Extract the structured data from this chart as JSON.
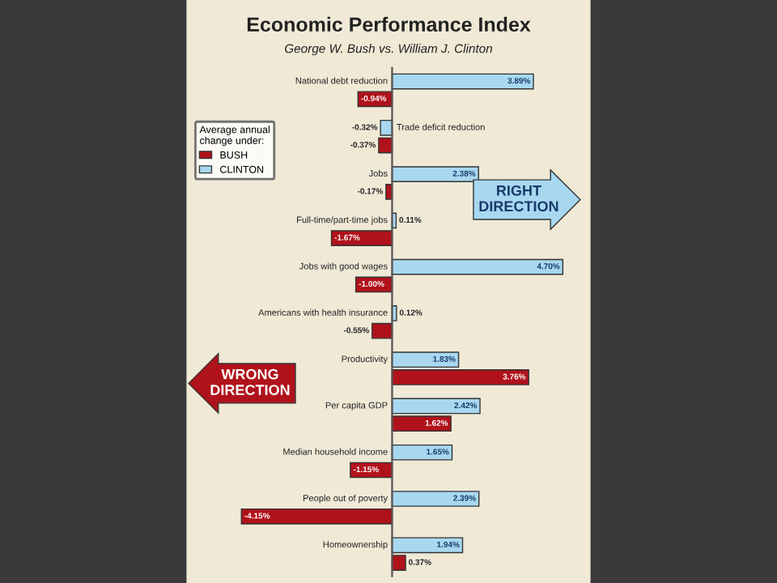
{
  "chart_data": {
    "type": "bar",
    "orientation": "horizontal",
    "title": "Economic Performance Index",
    "subtitle": "George W. Bush vs. William J. Clinton",
    "legend_title": "Average annual\nchange under:",
    "legend": "top left",
    "categories": [
      "National debt reduction",
      "Trade deficit reduction",
      "Jobs",
      "Full-time/part-time jobs",
      "Jobs with good wages",
      "Americans with health insurance",
      "Productivity",
      "Per capita GDP",
      "Median household income",
      "People out of poverty",
      "Homeownership"
    ],
    "series": [
      {
        "name": "CLINTON",
        "color": "#a8d8f0",
        "values": [
          3.89,
          -0.32,
          2.38,
          0.11,
          4.7,
          0.12,
          1.83,
          2.42,
          1.65,
          2.39,
          1.94
        ],
        "value_labels": [
          "3.89%",
          "-0.32%",
          "2.38%",
          "0.11%",
          "4.70%",
          "0.12%",
          "1.83%",
          "2.42%",
          "1.65%",
          "2.39%",
          "1.94%"
        ]
      },
      {
        "name": "BUSH",
        "color": "#b0121b",
        "values": [
          -0.94,
          -0.37,
          -0.17,
          -1.67,
          -1.0,
          -0.55,
          3.76,
          1.62,
          -1.15,
          -4.15,
          0.37
        ],
        "value_labels": [
          "-0.94%",
          "-0.37%",
          "-0.17%",
          "-1.67%",
          "-1.00%",
          "-0.55%",
          "3.76%",
          "1.62%",
          "-1.15%",
          "-4.15%",
          "0.37%"
        ]
      }
    ],
    "annotations": [
      "RIGHT\nDIRECTION",
      "WRONG\nDIRECTION"
    ]
  }
}
